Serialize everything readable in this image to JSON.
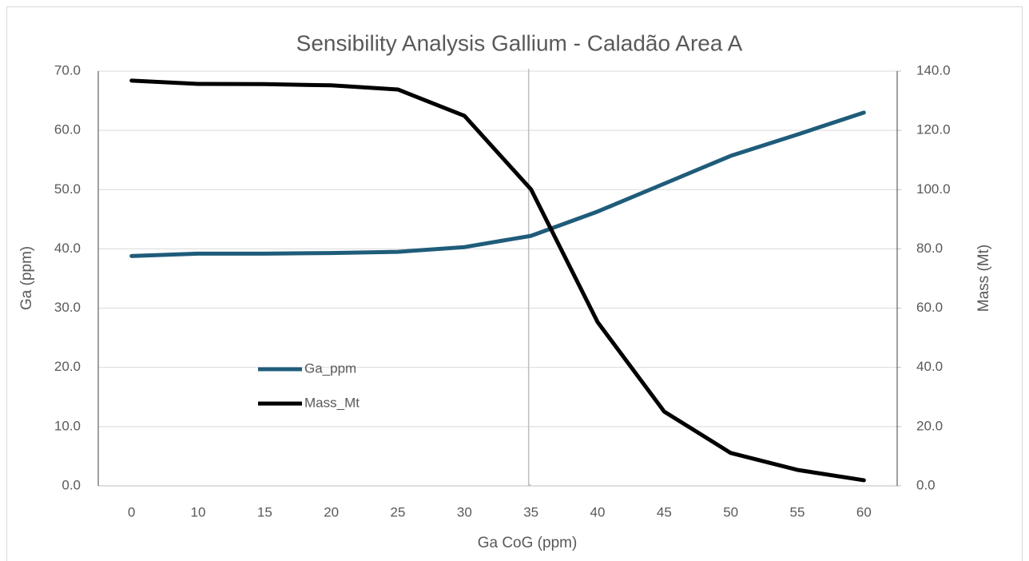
{
  "chart_data": {
    "type": "line",
    "title": "Sensibility Analysis Gallium - Caladão Area A",
    "x_label": "Ga CoG (ppm)",
    "y_label": "Ga (ppm)",
    "y2_label": "Mass (Mt)",
    "categories": [
      "0",
      "10",
      "15",
      "20",
      "25",
      "30",
      "35",
      "40",
      "45",
      "50",
      "55",
      "60"
    ],
    "series": [
      {
        "name": "Ga_ppm",
        "color": "#1f5c7a",
        "values": [
          38.8,
          39.2,
          39.2,
          39.3,
          39.5,
          40.3,
          42.2,
          46.3,
          51.0,
          55.7,
          59.3,
          63.0
        ]
      },
      {
        "name": "Mass_Mt",
        "color": "#000000",
        "axis": "y2",
        "values": [
          136.8,
          135.7,
          135.6,
          135.2,
          133.8,
          124.9,
          100.1,
          55.3,
          25.1,
          11.1,
          5.4,
          1.9
        ]
      }
    ],
    "ylim": [
      0,
      70
    ],
    "yticks": [
      {
        "value": 0,
        "label": "0.0"
      },
      {
        "value": 10,
        "label": "10.0"
      },
      {
        "value": 20,
        "label": "20.0"
      },
      {
        "value": 30,
        "label": "30.0"
      },
      {
        "value": 40,
        "label": "40.0"
      },
      {
        "value": 50,
        "label": "50.0"
      },
      {
        "value": 60,
        "label": "60.0"
      },
      {
        "value": 70,
        "label": "70.0"
      }
    ],
    "y2lim": [
      0,
      140
    ],
    "y2ticks": [
      {
        "value": 0,
        "label": "0.0"
      },
      {
        "value": 20,
        "label": "20.0"
      },
      {
        "value": 40,
        "label": "40.0"
      },
      {
        "value": 60,
        "label": "60.0"
      },
      {
        "value": 80,
        "label": "80.0"
      },
      {
        "value": 100,
        "label": "100.0"
      },
      {
        "value": 120,
        "label": "120.0"
      },
      {
        "value": 140,
        "label": "140.0"
      }
    ],
    "grid": true
  }
}
